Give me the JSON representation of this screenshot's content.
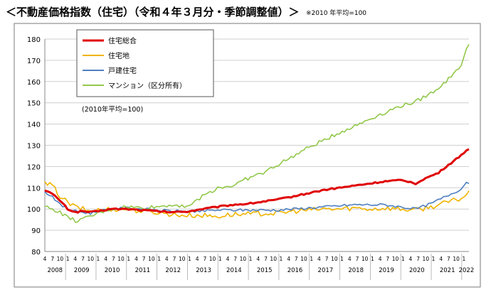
{
  "page": {
    "title": "＜不動産価格指数（住宅）（令和４年３月分・季節調整値）＞",
    "note": "※2010 年平均=100"
  },
  "chart_data": {
    "type": "line",
    "title": "不動産価格指数（住宅）（令和４年３月分・季節調整値）",
    "note": "(2010年平均=100)",
    "ylim": [
      80,
      180
    ],
    "yticks": [
      80,
      90,
      100,
      110,
      120,
      130,
      140,
      150,
      160,
      170,
      180
    ],
    "grid": true,
    "legend_position": "top-left",
    "x_axis": {
      "start": "2008-04",
      "end": "2022-03",
      "month_tick_labels": [
        "1",
        "4",
        "7",
        "10"
      ],
      "year_labels": [
        "2008",
        "2009",
        "2010",
        "2011",
        "2012",
        "2013",
        "2014",
        "2015",
        "2016",
        "2017",
        "2018",
        "2019",
        "2020",
        "2021",
        "2022"
      ]
    },
    "series": [
      {
        "name": "住宅総合",
        "color": "#e00000",
        "anchors": [
          [
            "2008-04",
            109
          ],
          [
            "2008-07",
            107
          ],
          [
            "2008-10",
            104
          ],
          [
            "2009-01",
            100
          ],
          [
            "2009-04",
            98.5
          ],
          [
            "2009-07",
            99
          ],
          [
            "2009-10",
            98.5
          ],
          [
            "2010-01",
            99
          ],
          [
            "2010-06",
            100
          ],
          [
            "2010-12",
            100
          ],
          [
            "2011-06",
            99.5
          ],
          [
            "2011-12",
            99
          ],
          [
            "2012-06",
            98.5
          ],
          [
            "2012-12",
            98.8
          ],
          [
            "2013-06",
            100
          ],
          [
            "2013-12",
            101
          ],
          [
            "2014-06",
            102
          ],
          [
            "2014-12",
            102.5
          ],
          [
            "2015-06",
            103.5
          ],
          [
            "2015-12",
            104.5
          ],
          [
            "2016-06",
            106
          ],
          [
            "2016-12",
            107.5
          ],
          [
            "2017-06",
            109
          ],
          [
            "2017-12",
            110
          ],
          [
            "2018-06",
            111
          ],
          [
            "2018-12",
            112
          ],
          [
            "2019-06",
            113
          ],
          [
            "2019-12",
            113.5
          ],
          [
            "2020-03",
            113
          ],
          [
            "2020-06",
            112
          ],
          [
            "2020-09",
            114
          ],
          [
            "2020-12",
            115.5
          ],
          [
            "2021-03",
            117
          ],
          [
            "2021-06",
            120
          ],
          [
            "2021-09",
            122.5
          ],
          [
            "2021-12",
            125.5
          ],
          [
            "2022-03",
            128.5
          ]
        ]
      },
      {
        "name": "住宅地",
        "color": "#f0b400",
        "anchors": [
          [
            "2008-04",
            112
          ],
          [
            "2008-07",
            111
          ],
          [
            "2008-10",
            106
          ],
          [
            "2009-01",
            103
          ],
          [
            "2009-04",
            101
          ],
          [
            "2009-07",
            100
          ],
          [
            "2009-10",
            99
          ],
          [
            "2010-01",
            99.5
          ],
          [
            "2010-06",
            100
          ],
          [
            "2010-12",
            100
          ],
          [
            "2011-06",
            99
          ],
          [
            "2011-12",
            98.5
          ],
          [
            "2012-06",
            97.5
          ],
          [
            "2012-12",
            97
          ],
          [
            "2013-06",
            97
          ],
          [
            "2013-12",
            96.5
          ],
          [
            "2014-06",
            97.5
          ],
          [
            "2014-12",
            97.5
          ],
          [
            "2015-06",
            98
          ],
          [
            "2015-12",
            98
          ],
          [
            "2016-06",
            99
          ],
          [
            "2016-12",
            99.5
          ],
          [
            "2017-06",
            100
          ],
          [
            "2017-12",
            100
          ],
          [
            "2018-06",
            100.5
          ],
          [
            "2018-12",
            100
          ],
          [
            "2019-06",
            100.5
          ],
          [
            "2019-12",
            100
          ],
          [
            "2020-06",
            99.5
          ],
          [
            "2020-12",
            101
          ],
          [
            "2021-06",
            103
          ],
          [
            "2021-12",
            105
          ],
          [
            "2022-03",
            108
          ]
        ]
      },
      {
        "name": "戸建住宅",
        "color": "#4f7fc0",
        "anchors": [
          [
            "2008-04",
            108
          ],
          [
            "2008-07",
            106
          ],
          [
            "2008-10",
            102
          ],
          [
            "2009-01",
            100
          ],
          [
            "2009-04",
            99
          ],
          [
            "2009-07",
            98.5
          ],
          [
            "2009-10",
            98
          ],
          [
            "2010-01",
            99
          ],
          [
            "2010-06",
            100
          ],
          [
            "2010-12",
            100.5
          ],
          [
            "2011-06",
            100
          ],
          [
            "2011-12",
            99.5
          ],
          [
            "2012-06",
            99
          ],
          [
            "2012-12",
            99
          ],
          [
            "2013-06",
            99
          ],
          [
            "2013-12",
            99.5
          ],
          [
            "2014-06",
            99.5
          ],
          [
            "2014-12",
            99.5
          ],
          [
            "2015-06",
            99.5
          ],
          [
            "2015-12",
            99.5
          ],
          [
            "2016-06",
            100
          ],
          [
            "2016-12",
            100.5
          ],
          [
            "2017-06",
            101
          ],
          [
            "2017-12",
            101.5
          ],
          [
            "2018-06",
            102
          ],
          [
            "2018-12",
            102
          ],
          [
            "2019-06",
            102
          ],
          [
            "2019-12",
            101
          ],
          [
            "2020-06",
            100
          ],
          [
            "2020-12",
            102.5
          ],
          [
            "2021-06",
            106
          ],
          [
            "2021-12",
            109.5
          ],
          [
            "2022-01",
            111
          ],
          [
            "2022-02",
            113
          ],
          [
            "2022-03",
            112
          ]
        ]
      },
      {
        "name": "マンション（区分所有）",
        "color": "#92c84a",
        "anchors": [
          [
            "2008-04",
            101
          ],
          [
            "2008-07",
            100
          ],
          [
            "2008-10",
            98.5
          ],
          [
            "2009-01",
            96
          ],
          [
            "2009-04",
            94.5
          ],
          [
            "2009-07",
            95
          ],
          [
            "2009-10",
            96.5
          ],
          [
            "2010-01",
            98
          ],
          [
            "2010-06",
            100
          ],
          [
            "2010-12",
            101
          ],
          [
            "2011-06",
            100.5
          ],
          [
            "2011-12",
            101
          ],
          [
            "2012-06",
            102
          ],
          [
            "2012-12",
            101.5
          ],
          [
            "2013-03",
            103
          ],
          [
            "2013-06",
            106
          ],
          [
            "2013-12",
            110
          ],
          [
            "2014-06",
            111
          ],
          [
            "2014-12",
            114.5
          ],
          [
            "2015-06",
            117
          ],
          [
            "2015-12",
            121
          ],
          [
            "2016-06",
            125
          ],
          [
            "2016-12",
            129
          ],
          [
            "2017-06",
            132.5
          ],
          [
            "2017-12",
            136
          ],
          [
            "2018-06",
            139
          ],
          [
            "2018-12",
            142.5
          ],
          [
            "2019-06",
            145.5
          ],
          [
            "2019-12",
            148.5
          ],
          [
            "2020-06",
            150.5
          ],
          [
            "2020-12",
            154.5
          ],
          [
            "2021-06",
            160
          ],
          [
            "2021-12",
            168
          ],
          [
            "2022-03",
            178
          ]
        ]
      }
    ]
  }
}
